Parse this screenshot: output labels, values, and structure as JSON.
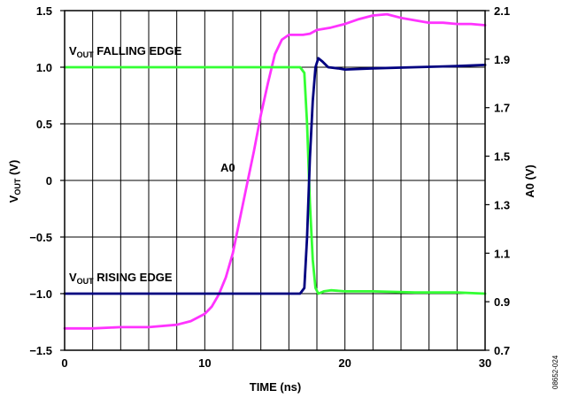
{
  "chart_data": {
    "type": "line",
    "xlabel": "TIME (ns)",
    "ylabel_left": {
      "main": "V",
      "sub": "OUT",
      "suffix": " (V)"
    },
    "ylabel_right": "A0 (V)",
    "xlim": [
      0,
      30
    ],
    "ylim_left": [
      -1.5,
      1.5
    ],
    "ylim_right": [
      0.7,
      2.1
    ],
    "x_ticks": [
      0,
      10,
      20,
      30
    ],
    "x_tick_labels": [
      "0",
      "10",
      "20",
      "30"
    ],
    "x_minor_ticks": [
      2,
      4,
      6,
      8,
      12,
      14,
      16,
      18,
      22,
      24,
      26,
      28
    ],
    "y_left_ticks": [
      1.5,
      1.0,
      0.5,
      0,
      -0.5,
      -1.0,
      -1.5
    ],
    "y_left_tick_labels": [
      "1.5",
      "1.0",
      "0.5",
      "0",
      "−0.5",
      "−1.0",
      "−1.5"
    ],
    "y_right_ticks": [
      2.1,
      1.9,
      1.7,
      1.5,
      1.3,
      1.1,
      0.9,
      0.7
    ],
    "y_right_tick_labels": [
      "2.1",
      "1.9",
      "1.7",
      "1.5",
      "1.3",
      "1.1",
      "0.9",
      "0.7"
    ],
    "grid": true,
    "series": [
      {
        "name": "A0",
        "axis": "right",
        "color": "#ff33ff",
        "x": [
          0,
          2,
          4,
          6,
          8,
          9,
          10,
          10.5,
          11,
          11.5,
          12,
          12.5,
          13,
          13.5,
          14,
          14.5,
          15,
          15.5,
          16,
          16.5,
          17,
          17.5,
          18,
          19,
          20,
          21,
          22,
          23,
          24,
          25,
          26,
          27,
          28,
          29,
          30
        ],
        "y": [
          0.79,
          0.79,
          0.795,
          0.795,
          0.805,
          0.82,
          0.85,
          0.88,
          0.93,
          1.0,
          1.1,
          1.24,
          1.38,
          1.52,
          1.67,
          1.8,
          1.92,
          1.98,
          2.0,
          2.0,
          2.0,
          2.005,
          2.02,
          2.03,
          2.045,
          2.065,
          2.08,
          2.085,
          2.07,
          2.06,
          2.05,
          2.05,
          2.045,
          2.045,
          2.04
        ]
      },
      {
        "name": "VOUT FALLING EDGE",
        "axis": "left",
        "color": "#33ff33",
        "x": [
          0,
          5,
          10,
          15,
          16.8,
          17.1,
          17.3,
          17.5,
          17.7,
          17.9,
          18.1,
          18.5,
          19,
          20,
          22,
          25,
          28,
          30
        ],
        "y": [
          1.0,
          1.0,
          1.0,
          1.0,
          1.0,
          0.95,
          0.5,
          -0.2,
          -0.7,
          -0.95,
          -1.0,
          -0.98,
          -0.97,
          -0.98,
          -0.98,
          -0.99,
          -0.99,
          -1.0
        ]
      },
      {
        "name": "VOUT RISING EDGE",
        "axis": "left",
        "color": "#000080",
        "x": [
          0,
          5,
          10,
          15,
          16.8,
          17.1,
          17.3,
          17.5,
          17.7,
          17.9,
          18.1,
          18.4,
          18.8,
          19.5,
          20,
          22,
          25,
          28,
          30
        ],
        "y": [
          -1.0,
          -1.0,
          -1.0,
          -1.0,
          -1.0,
          -0.95,
          -0.5,
          0.2,
          0.7,
          1.0,
          1.08,
          1.05,
          1.0,
          0.99,
          0.98,
          0.99,
          1.0,
          1.01,
          1.02
        ]
      }
    ]
  },
  "annotations": {
    "a0_label": "A0",
    "falling": {
      "main": "V",
      "sub": "OUT",
      "rest": " FALLING EDGE"
    },
    "rising": {
      "main": "V",
      "sub": "OUT",
      "rest": " RISING EDGE"
    }
  },
  "figure_id": "08652-024"
}
